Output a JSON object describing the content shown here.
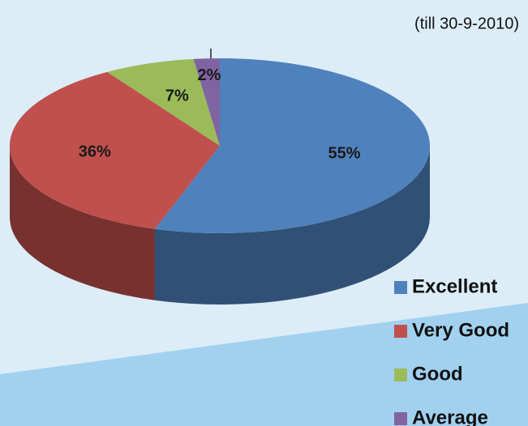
{
  "chart_data": {
    "type": "pie",
    "subtitle": "(till 30-9-2010)",
    "categories": [
      "Excellent",
      "Very Good",
      "Good",
      "Average"
    ],
    "values": [
      55,
      36,
      7,
      2
    ],
    "value_labels": [
      "55%",
      "36%",
      "7%",
      "2%"
    ],
    "colors": [
      "#4f81bd",
      "#c0504d",
      "#9bbb59",
      "#8064a2"
    ],
    "legend": "bottom-right"
  }
}
